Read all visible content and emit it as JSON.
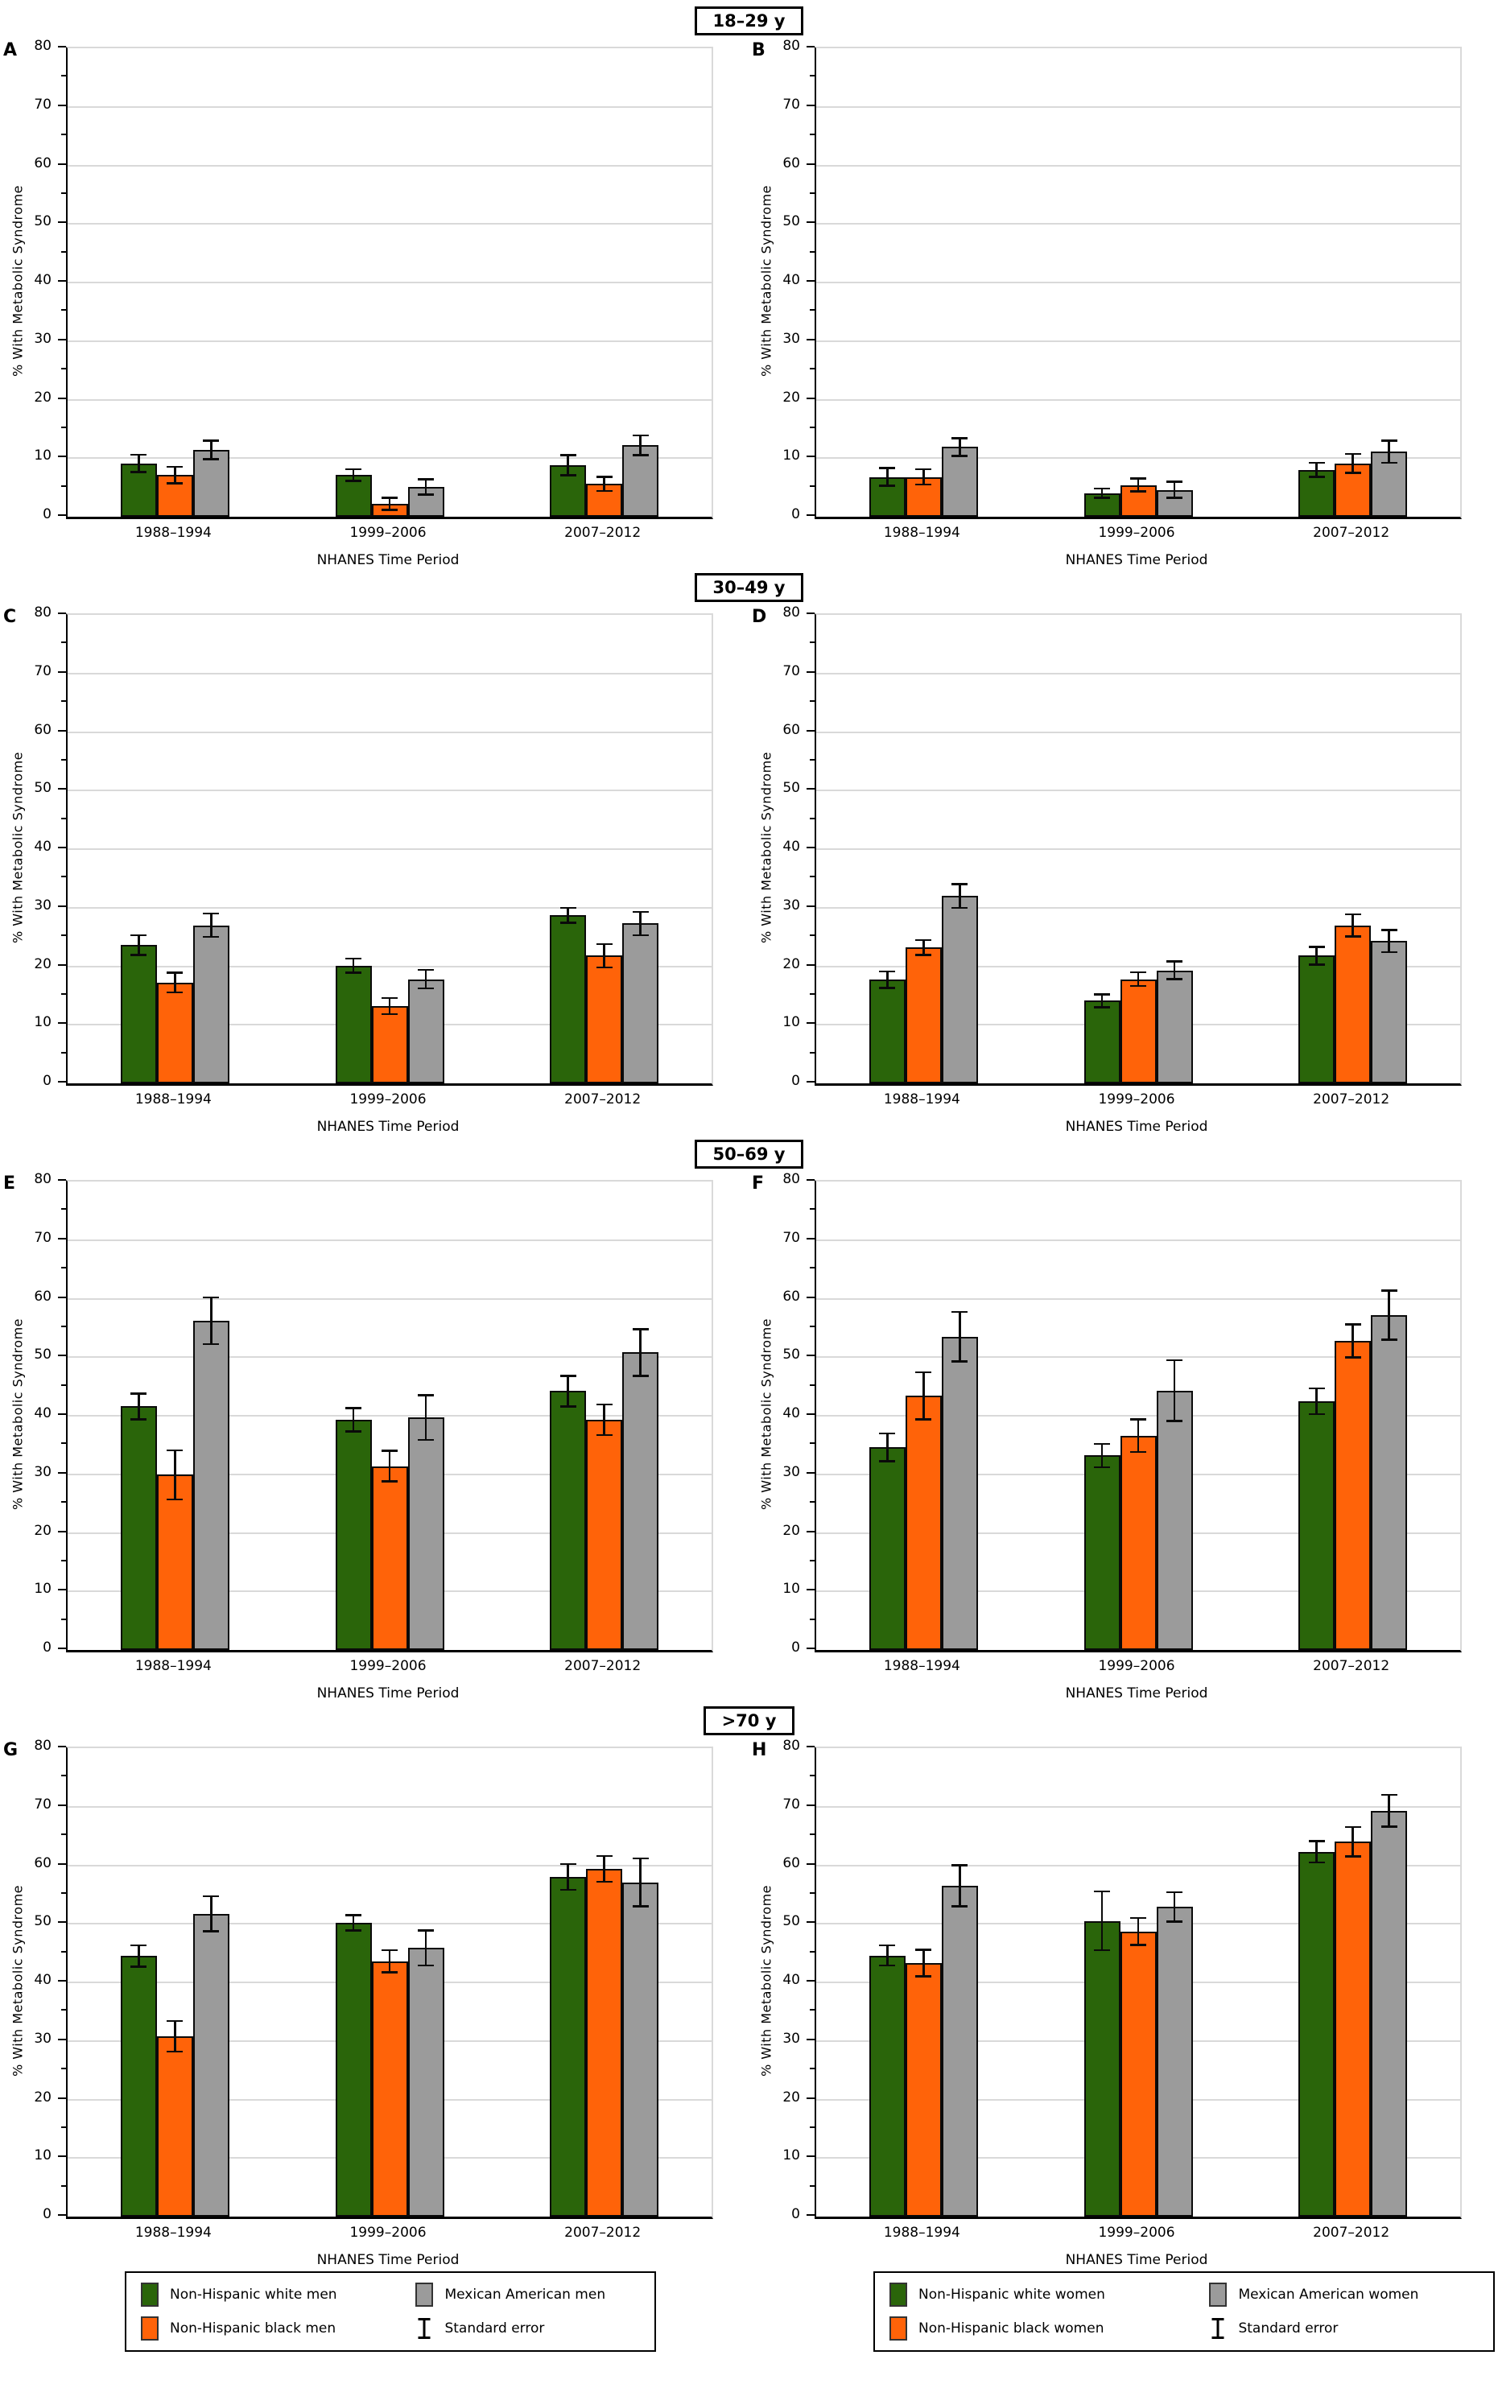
{
  "age_group_headers": [
    "18–29 y",
    "30–49 y",
    "50–69 y",
    ">70 y"
  ],
  "axis": {
    "ylabel": "% With Metabolic Syndrome",
    "xlabel": "NHANES Time Period",
    "ylim": [
      0,
      80
    ],
    "ytick_step": 10,
    "yminor_step": 5,
    "grid": "horizontal",
    "categories": [
      "1988–1994",
      "1999–2006",
      "2007–2012"
    ]
  },
  "colors": {
    "non_hispanic_white": "#2a650a",
    "non_hispanic_black": "#ff6309",
    "mexican_american": "#9b9b9b",
    "gridline": "#d9d9d9",
    "axis_line": "#000000",
    "error_bar": "#0a0a0a"
  },
  "chart_data": [
    {
      "type": "bar",
      "panel": "A",
      "age_group": "18–29 y",
      "population": "men",
      "categories": [
        "1988–1994",
        "1999–2006",
        "2007–2012"
      ],
      "series": [
        {
          "name": "Non-Hispanic white men",
          "color": "#2a650a",
          "values": [
            9.1,
            7.1,
            8.8
          ],
          "se": [
            1.5,
            1.0,
            1.7
          ]
        },
        {
          "name": "Non-Hispanic black men",
          "color": "#ff6309",
          "values": [
            7.1,
            2.2,
            5.6
          ],
          "se": [
            1.4,
            1.0,
            1.2
          ]
        },
        {
          "name": "Mexican American men",
          "color": "#9b9b9b",
          "values": [
            11.4,
            5.1,
            12.2
          ],
          "se": [
            1.6,
            1.3,
            1.7
          ]
        }
      ]
    },
    {
      "type": "bar",
      "panel": "B",
      "age_group": "18–29 y",
      "population": "women",
      "categories": [
        "1988–1994",
        "1999–2006",
        "2007–2012"
      ],
      "series": [
        {
          "name": "Non-Hispanic white women",
          "color": "#2a650a",
          "values": [
            6.8,
            4.0,
            8.0
          ],
          "se": [
            1.5,
            0.8,
            1.2
          ]
        },
        {
          "name": "Non-Hispanic black women",
          "color": "#ff6309",
          "values": [
            6.8,
            5.4,
            9.1
          ],
          "se": [
            1.3,
            1.1,
            1.6
          ]
        },
        {
          "name": "Mexican American women",
          "color": "#9b9b9b",
          "values": [
            11.9,
            4.6,
            11.1
          ],
          "se": [
            1.5,
            1.4,
            1.9
          ]
        }
      ]
    },
    {
      "type": "bar",
      "panel": "C",
      "age_group": "30–49 y",
      "population": "men",
      "categories": [
        "1988–1994",
        "1999–2006",
        "2007–2012"
      ],
      "series": [
        {
          "name": "Non-Hispanic white men",
          "color": "#2a650a",
          "values": [
            23.6,
            20.1,
            28.7
          ],
          "se": [
            1.7,
            1.2,
            1.3
          ]
        },
        {
          "name": "Non-Hispanic black men",
          "color": "#ff6309",
          "values": [
            17.2,
            13.2,
            21.8
          ],
          "se": [
            1.7,
            1.4,
            2.0
          ]
        },
        {
          "name": "Mexican American men",
          "color": "#9b9b9b",
          "values": [
            27.0,
            17.8,
            27.3
          ],
          "se": [
            2.0,
            1.6,
            2.0
          ]
        }
      ]
    },
    {
      "type": "bar",
      "panel": "D",
      "age_group": "30–49 y",
      "population": "women",
      "categories": [
        "1988–1994",
        "1999–2006",
        "2007–2012"
      ],
      "series": [
        {
          "name": "Non-Hispanic white women",
          "color": "#2a650a",
          "values": [
            17.7,
            14.1,
            21.8
          ],
          "se": [
            1.4,
            1.1,
            1.5
          ]
        },
        {
          "name": "Non-Hispanic black women",
          "color": "#ff6309",
          "values": [
            23.2,
            17.8,
            27.0
          ],
          "se": [
            1.3,
            1.2,
            1.9
          ]
        },
        {
          "name": "Mexican American women",
          "color": "#9b9b9b",
          "values": [
            32.0,
            19.3,
            24.3
          ],
          "se": [
            2.0,
            1.5,
            1.9
          ]
        }
      ]
    },
    {
      "type": "bar",
      "panel": "E",
      "age_group": "50–69 y",
      "population": "men",
      "categories": [
        "1988–1994",
        "1999–2006",
        "2007–2012"
      ],
      "series": [
        {
          "name": "Non-Hispanic white men",
          "color": "#2a650a",
          "values": [
            41.6,
            39.3,
            44.2
          ],
          "se": [
            2.2,
            2.0,
            2.6
          ]
        },
        {
          "name": "Non-Hispanic black men",
          "color": "#ff6309",
          "values": [
            29.9,
            31.4,
            39.3
          ],
          "se": [
            4.2,
            2.6,
            2.6
          ]
        },
        {
          "name": "Mexican American men",
          "color": "#9b9b9b",
          "values": [
            56.2,
            39.7,
            50.8
          ],
          "se": [
            4.0,
            3.8,
            4.0
          ]
        }
      ]
    },
    {
      "type": "bar",
      "panel": "F",
      "age_group": "50–69 y",
      "population": "women",
      "categories": [
        "1988–1994",
        "1999–2006",
        "2007–2012"
      ],
      "series": [
        {
          "name": "Non-Hispanic white women",
          "color": "#2a650a",
          "values": [
            34.6,
            33.2,
            42.5
          ],
          "se": [
            2.4,
            2.0,
            2.2
          ]
        },
        {
          "name": "Non-Hispanic black women",
          "color": "#ff6309",
          "values": [
            43.4,
            36.6,
            52.8
          ],
          "se": [
            4.0,
            2.8,
            2.8
          ]
        },
        {
          "name": "Mexican American women",
          "color": "#9b9b9b",
          "values": [
            53.5,
            44.3,
            57.2
          ],
          "se": [
            4.2,
            5.2,
            4.2
          ]
        }
      ]
    },
    {
      "type": "bar",
      "panel": "G",
      "age_group": ">70 y",
      "population": "men",
      "categories": [
        "1988–1994",
        "1999–2006",
        "2007–2012"
      ],
      "series": [
        {
          "name": "Non-Hispanic white men",
          "color": "#2a650a",
          "values": [
            44.5,
            50.2,
            58.0
          ],
          "se": [
            1.8,
            1.3,
            2.2
          ]
        },
        {
          "name": "Non-Hispanic black men",
          "color": "#ff6309",
          "values": [
            30.8,
            43.6,
            59.4
          ],
          "se": [
            2.6,
            1.9,
            2.2
          ]
        },
        {
          "name": "Mexican American men",
          "color": "#9b9b9b",
          "values": [
            51.7,
            45.9,
            57.1
          ],
          "se": [
            3.0,
            3.0,
            4.1
          ]
        }
      ]
    },
    {
      "type": "bar",
      "panel": "H",
      "age_group": ">70 y",
      "population": "women",
      "categories": [
        "1988–1994",
        "1999–2006",
        "2007–2012"
      ],
      "series": [
        {
          "name": "Non-Hispanic white women",
          "color": "#2a650a",
          "values": [
            44.6,
            50.5,
            62.3
          ],
          "se": [
            1.7,
            5.0,
            1.8
          ]
        },
        {
          "name": "Non-Hispanic black women",
          "color": "#ff6309",
          "values": [
            43.3,
            48.7,
            64.0
          ],
          "se": [
            2.3,
            2.3,
            2.5
          ]
        },
        {
          "name": "Mexican American women",
          "color": "#9b9b9b",
          "values": [
            56.5,
            52.9,
            69.3
          ],
          "se": [
            3.5,
            2.5,
            2.7
          ]
        }
      ]
    }
  ],
  "legends": [
    {
      "side": "left",
      "items": [
        {
          "label": "Non-Hispanic white men",
          "swatch": "#2a650a"
        },
        {
          "label": "Mexican American men",
          "swatch": "#9b9b9b"
        },
        {
          "label": "Non-Hispanic black men",
          "swatch": "#ff6309"
        },
        {
          "label": "Standard error",
          "swatch": "errorbar"
        }
      ]
    },
    {
      "side": "right",
      "items": [
        {
          "label": "Non-Hispanic white women",
          "swatch": "#2a650a"
        },
        {
          "label": "Mexican American women",
          "swatch": "#9b9b9b"
        },
        {
          "label": "Non-Hispanic black women",
          "swatch": "#ff6309"
        },
        {
          "label": "Standard error",
          "swatch": "errorbar"
        }
      ]
    }
  ]
}
